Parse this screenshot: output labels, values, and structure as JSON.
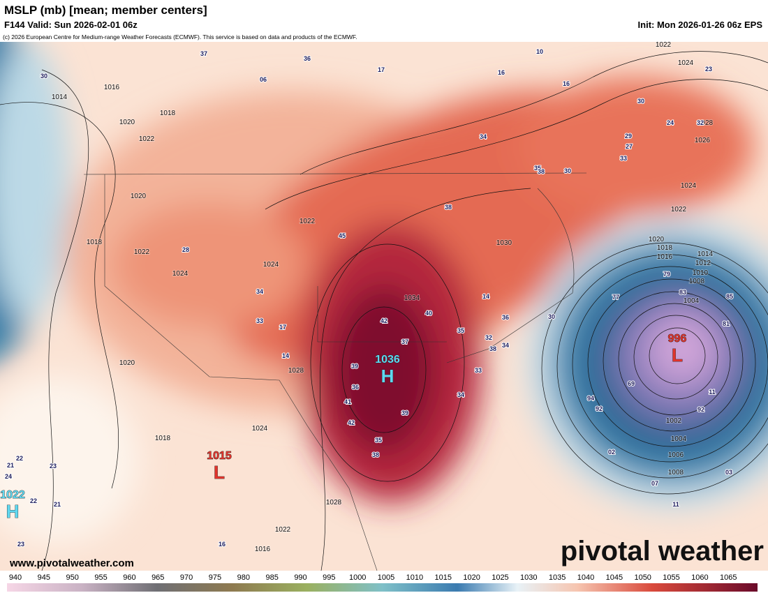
{
  "header": {
    "title": "MSLP (mb) [mean; member centers]",
    "valid": "F144 Valid: Sun 2026-02-01 06z",
    "init": "Init: Mon 2026-01-26 06z EPS",
    "credit": "(c) 2026 European Centre for Medium-range Weather Forecasts (ECMWF). This service is based on data and products of the ECMWF."
  },
  "map": {
    "centers": [
      {
        "label": "1036",
        "symbol": "H"
      },
      {
        "label": "996",
        "symbol": "L"
      },
      {
        "label": "1015",
        "symbol": "L"
      },
      {
        "label": "1022",
        "symbol": "H"
      }
    ],
    "isobar_labels": [
      "1022",
      "1024",
      "1016",
      "1014",
      "1018",
      "1020",
      "1022",
      "1020",
      "1018",
      "1022",
      "1024",
      "1024",
      "1022",
      "1034",
      "1028",
      "1024",
      "1018",
      "1020",
      "1028",
      "1022",
      "1016",
      "1030",
      "1028",
      "1026",
      "1024",
      "1022",
      "1020",
      "1018",
      "1016",
      "1014",
      "1012",
      "1010",
      "1008",
      "1004",
      "1002",
      "1004",
      "1006",
      "1008"
    ],
    "member_labels": [
      "37",
      "36",
      "30",
      "06",
      "17",
      "10",
      "16",
      "16",
      "23",
      "30",
      "24",
      "32",
      "29",
      "27",
      "33",
      "34",
      "35",
      "30",
      "38",
      "38",
      "45",
      "28",
      "34",
      "33",
      "17",
      "42",
      "40",
      "37",
      "35",
      "32",
      "34",
      "38",
      "33",
      "34",
      "39",
      "42",
      "35",
      "38",
      "41",
      "36",
      "39",
      "11",
      "92",
      "03",
      "07",
      "11",
      "02",
      "94",
      "92",
      "69",
      "85",
      "81",
      "83",
      "77",
      "79",
      "14",
      "36",
      "30",
      "14",
      "16",
      "22",
      "23",
      "21",
      "24",
      "21",
      "23",
      "22"
    ]
  },
  "footer": {
    "site": "www.pivotalweather.com",
    "brand": "pivotal weather"
  },
  "colorbar": {
    "labels": [
      940,
      945,
      950,
      955,
      960,
      965,
      970,
      975,
      980,
      985,
      990,
      995,
      1000,
      1005,
      1010,
      1015,
      1020,
      1025,
      1030,
      1035,
      1040,
      1045,
      1050,
      1055,
      1060,
      1065
    ]
  }
}
